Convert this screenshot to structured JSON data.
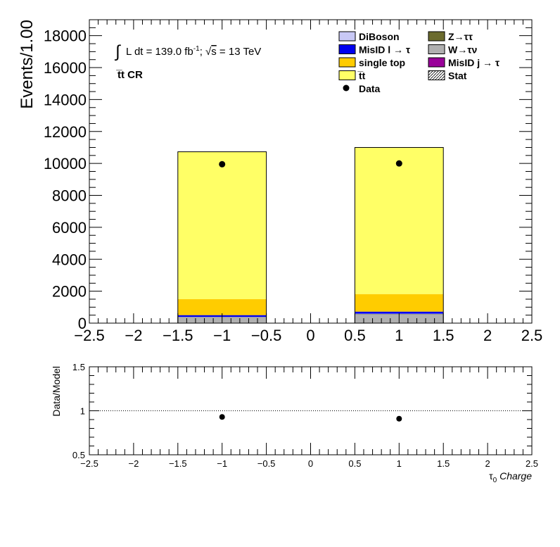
{
  "chart_data": {
    "type": "bar",
    "stacked": true,
    "x_edges": [
      -2.5,
      -1.5,
      -0.5,
      0.5,
      1.5,
      2.5
    ],
    "bins": [
      {
        "x0": -1.5,
        "x1": -0.5,
        "center": -1.0
      },
      {
        "x0": 0.5,
        "x1": 1.5,
        "center": 1.0
      }
    ],
    "series": [
      {
        "name": "W→τν",
        "color": "#b0b0b0",
        "values": [
          350,
          550
        ]
      },
      {
        "name": "Z→ττ",
        "color": "#6b6b2e",
        "values": [
          20,
          20
        ]
      },
      {
        "name": "DiBoson",
        "color": "#c8c8f5",
        "values": [
          20,
          20
        ]
      },
      {
        "name": "MisID j → τ",
        "color": "#990099",
        "values": [
          0,
          0
        ]
      },
      {
        "name": "MisID l → τ",
        "color": "#0000ee",
        "values": [
          110,
          130
        ]
      },
      {
        "name": "single top",
        "color": "#ffcc00",
        "values": [
          1000,
          1100
        ]
      },
      {
        "name": "t̅t",
        "color": "#ffff66",
        "values": [
          9230,
          9180
        ]
      }
    ],
    "data": {
      "name": "Data",
      "x": [
        -1,
        1
      ],
      "y": [
        9950,
        10000
      ]
    },
    "ratio": {
      "x": [
        -1,
        1
      ],
      "y": [
        0.93,
        0.91
      ],
      "ylim": [
        0.5,
        1.5
      ],
      "yticks": [
        "0.5",
        "1",
        "1.5"
      ],
      "ylabel": "Data/Model"
    },
    "ylim": [
      0,
      19000
    ],
    "yticks": [
      "0",
      "2000",
      "4000",
      "6000",
      "8000",
      "10000",
      "12000",
      "14000",
      "16000",
      "18000"
    ],
    "xlim": [
      -2.5,
      2.5
    ],
    "xticks": [
      "−2.5",
      "−2",
      "−1.5",
      "−1",
      "−0.5",
      "0",
      "0.5",
      "1",
      "1.5",
      "2",
      "2.5"
    ],
    "ylabel": "Events/1.00",
    "xlabel_sym": "τ",
    "xlabel_sub": "0",
    "xlabel_rest": " Charge",
    "legend": {
      "placement": "top-right",
      "left_col": [
        "DiBoson",
        "MisID l → τ",
        "single top",
        "t̅t",
        "Data"
      ],
      "right_col": [
        "Z→ττ",
        "W→τν",
        "MisID j → τ",
        "Stat"
      ]
    },
    "annotation_lumi_a": "L dt = 139.0 fb",
    "annotation_lumi_sup": "-1",
    "annotation_lumi_b": ";  ",
    "annotation_sqrt_s": "s",
    "annotation_energy": " = 13 TeV",
    "region_label": "t̅t CR",
    "integral_symbol": "∫",
    "sqrt_symbol": "√"
  }
}
